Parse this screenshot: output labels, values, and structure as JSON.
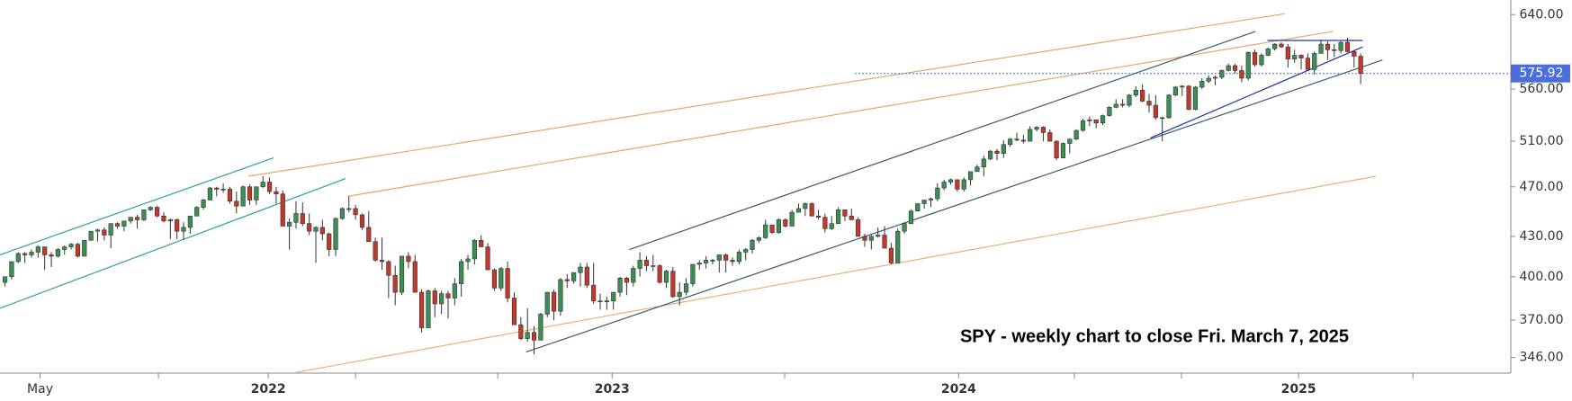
{
  "chart_data": {
    "type": "candlestick",
    "annotation": "SPY - weekly chart to close Fri. March 7, 2025",
    "log_y": true,
    "ylim": [
      336.5,
      657
    ],
    "yticks": [
      {
        "value": 346,
        "label": "346.00"
      },
      {
        "value": 370,
        "label": "370.00"
      },
      {
        "value": 400,
        "label": "400.00"
      },
      {
        "value": 430,
        "label": "430.00"
      },
      {
        "value": 470,
        "label": "470.00"
      },
      {
        "value": 510,
        "label": "510.00"
      },
      {
        "value": 560,
        "label": "560.00"
      },
      {
        "value": 640,
        "label": "640.00"
      }
    ],
    "xlim": [
      -0.76,
      227.7
    ],
    "xticks": [
      {
        "value": 5.3,
        "label": "May"
      },
      {
        "value": 39.8,
        "label": "2022"
      },
      {
        "value": 91.8,
        "label": "2023"
      },
      {
        "value": 144.2,
        "label": "2024"
      },
      {
        "value": 195.6,
        "label": "2025"
      }
    ],
    "x_minor_ticks": [
      23.2,
      53.0,
      74.5,
      117.9,
      161.7,
      177.9,
      212.9
    ],
    "up_color": "#3b8f52",
    "down_color": "#c0392b",
    "last_price": 575.92,
    "last_price_color": "#4a6fdc",
    "trendlines": [
      {
        "color": "#2aa198",
        "points": [
          [
            -0.76,
            416
          ],
          [
            40.6,
            495
          ]
        ]
      },
      {
        "color": "#2aa198",
        "points": [
          [
            -0.76,
            378
          ],
          [
            51.5,
            477
          ]
        ]
      },
      {
        "color": "#e3a86a",
        "points": [
          [
            36.8,
            479
          ],
          [
            193.5,
            641
          ]
        ]
      },
      {
        "color": "#e3a86a",
        "points": [
          [
            51.8,
            462
          ],
          [
            200.8,
            621
          ]
        ]
      },
      {
        "color": "#e8b07a",
        "points": [
          [
            44.1,
            337
          ],
          [
            207.3,
            479
          ]
        ]
      },
      {
        "color": "#3d5a6c",
        "points": [
          [
            94.4,
            420
          ],
          [
            189.1,
            621
          ]
        ]
      },
      {
        "color": "#3d5a6c",
        "points": [
          [
            78.8,
            349.5
          ],
          [
            208.3,
            590
          ]
        ]
      },
      {
        "color": "#2233aa",
        "points": [
          [
            173.2,
            513
          ],
          [
            205.3,
            604
          ]
        ]
      },
      {
        "color": "#2233aa",
        "points": [
          [
            190.9,
            611
          ],
          [
            205.3,
            611
          ]
        ]
      },
      {
        "color": "#4a6fdc",
        "dotted": true,
        "points": [
          [
            128.5,
            575.92
          ],
          [
            227.7,
            575.92
          ]
        ]
      }
    ],
    "ohlc": [
      [
        396,
        400,
        393,
        400
      ],
      [
        400,
        411,
        398,
        411
      ],
      [
        411,
        418,
        410,
        417
      ],
      [
        417,
        418,
        410,
        416
      ],
      [
        416,
        420,
        414,
        418
      ],
      [
        418,
        423,
        414,
        422
      ],
      [
        422,
        422,
        405,
        416
      ],
      [
        416,
        418,
        407,
        415
      ],
      [
        415,
        421,
        414,
        420
      ],
      [
        420,
        423,
        416,
        422
      ],
      [
        422,
        425,
        420,
        424
      ],
      [
        424,
        425,
        414,
        415
      ],
      [
        415,
        427,
        415,
        427
      ],
      [
        427,
        434,
        427,
        434
      ],
      [
        434,
        436,
        426,
        435
      ],
      [
        435,
        437,
        427,
        431
      ],
      [
        431,
        440,
        421,
        440
      ],
      [
        440,
        441,
        436,
        438
      ],
      [
        438,
        442,
        434,
        442
      ],
      [
        442,
        445,
        440,
        445
      ],
      [
        445,
        447,
        436,
        443
      ],
      [
        443,
        451,
        442,
        451
      ],
      [
        451,
        454,
        450,
        453
      ],
      [
        453,
        454,
        445,
        446
      ],
      [
        446,
        449,
        441,
        442
      ],
      [
        442,
        444,
        428,
        443
      ],
      [
        443,
        444,
        428,
        434
      ],
      [
        434,
        441,
        427,
        437
      ],
      [
        437,
        446,
        432,
        446
      ],
      [
        446,
        454,
        446,
        453
      ],
      [
        453,
        460,
        451,
        459
      ],
      [
        459,
        470,
        459,
        469
      ],
      [
        469,
        470,
        462,
        468
      ],
      [
        468,
        473,
        465,
        468
      ],
      [
        468,
        470,
        456,
        458
      ],
      [
        458,
        466,
        448,
        454
      ],
      [
        454,
        471,
        454,
        470
      ],
      [
        470,
        472,
        455,
        459
      ],
      [
        459,
        470,
        455,
        470
      ],
      [
        470,
        479,
        469,
        474
      ],
      [
        474,
        478,
        464,
        466
      ],
      [
        466,
        470,
        456,
        464
      ],
      [
        464,
        467,
        438,
        438
      ],
      [
        438,
        444,
        420,
        441
      ],
      [
        441,
        458,
        436,
        448
      ],
      [
        448,
        457,
        438,
        440
      ],
      [
        440,
        448,
        431,
        434
      ],
      [
        434,
        438,
        410,
        437
      ],
      [
        437,
        443,
        427,
        432
      ],
      [
        432,
        433,
        415,
        420
      ],
      [
        420,
        445,
        415,
        444
      ],
      [
        444,
        453,
        443,
        452
      ],
      [
        452,
        462,
        449,
        452
      ],
      [
        452,
        455,
        443,
        447
      ],
      [
        447,
        448,
        435,
        437
      ],
      [
        437,
        450,
        426,
        426
      ],
      [
        426,
        429,
        411,
        412
      ],
      [
        412,
        429,
        405,
        411
      ],
      [
        411,
        412,
        385,
        401
      ],
      [
        401,
        408,
        380,
        389
      ],
      [
        389,
        415,
        387,
        415
      ],
      [
        415,
        418,
        406,
        411
      ],
      [
        411,
        416,
        389,
        389
      ],
      [
        389,
        391,
        362,
        365
      ],
      [
        365,
        391,
        365,
        390
      ],
      [
        390,
        392,
        372,
        381
      ],
      [
        381,
        390,
        374,
        388
      ],
      [
        388,
        390,
        371,
        385
      ],
      [
        385,
        399,
        380,
        395
      ],
      [
        395,
        413,
        386,
        411
      ],
      [
        411,
        416,
        405,
        413
      ],
      [
        413,
        428,
        409,
        427
      ],
      [
        427,
        431,
        422,
        422
      ],
      [
        422,
        425,
        405,
        405
      ],
      [
        405,
        406,
        390,
        392
      ],
      [
        392,
        407,
        390,
        406
      ],
      [
        406,
        411,
        382,
        385
      ],
      [
        385,
        389,
        367,
        367
      ],
      [
        367,
        372,
        357,
        358
      ],
      [
        358,
        378,
        356,
        362
      ],
      [
        362,
        366,
        348,
        357
      ],
      [
        357,
        375,
        357,
        374
      ],
      [
        374,
        389,
        372,
        389
      ],
      [
        389,
        391,
        370,
        376
      ],
      [
        376,
        399,
        373,
        398
      ],
      [
        398,
        402,
        392,
        397
      ],
      [
        397,
        403,
        395,
        403
      ],
      [
        403,
        410,
        393,
        407
      ],
      [
        407,
        410,
        392,
        394
      ],
      [
        394,
        410,
        381,
        383
      ],
      [
        383,
        388,
        377,
        383
      ],
      [
        383,
        386,
        377,
        383
      ],
      [
        383,
        389,
        377,
        389
      ],
      [
        389,
        400,
        386,
        399
      ],
      [
        399,
        400,
        387,
        396
      ],
      [
        396,
        408,
        393,
        406
      ],
      [
        406,
        418,
        400,
        412
      ],
      [
        412,
        415,
        404,
        408
      ],
      [
        408,
        416,
        404,
        408
      ],
      [
        408,
        409,
        395,
        396
      ],
      [
        396,
        405,
        392,
        404
      ],
      [
        404,
        407,
        385,
        386
      ],
      [
        386,
        396,
        380,
        389
      ],
      [
        389,
        399,
        387,
        395
      ],
      [
        395,
        409,
        393,
        409
      ],
      [
        409,
        412,
        405,
        410
      ],
      [
        410,
        415,
        406,
        412
      ],
      [
        412,
        413,
        409,
        412
      ],
      [
        412,
        416,
        403,
        416
      ],
      [
        416,
        417,
        403,
        412
      ],
      [
        412,
        414,
        408,
        411
      ],
      [
        411,
        420,
        409,
        418
      ],
      [
        418,
        421,
        412,
        420
      ],
      [
        420,
        428,
        417,
        427
      ],
      [
        427,
        430,
        425,
        429
      ],
      [
        429,
        443,
        428,
        439
      ],
      [
        439,
        439,
        432,
        433
      ],
      [
        433,
        444,
        432,
        443
      ],
      [
        443,
        444,
        437,
        438
      ],
      [
        438,
        451,
        438,
        449
      ],
      [
        449,
        456,
        449,
        452
      ],
      [
        452,
        457,
        446,
        456
      ],
      [
        456,
        457,
        446,
        446
      ],
      [
        446,
        451,
        443,
        445
      ],
      [
        445,
        448,
        433,
        436
      ],
      [
        436,
        446,
        435,
        440
      ],
      [
        440,
        453,
        440,
        451
      ],
      [
        451,
        451,
        442,
        446
      ],
      [
        446,
        452,
        443,
        443
      ],
      [
        443,
        445,
        430,
        430
      ],
      [
        430,
        432,
        422,
        427
      ],
      [
        427,
        431,
        420,
        430
      ],
      [
        430,
        437,
        429,
        431
      ],
      [
        431,
        438,
        421,
        421
      ],
      [
        421,
        425,
        409,
        410
      ],
      [
        410,
        436,
        410,
        434
      ],
      [
        434,
        441,
        432,
        440
      ],
      [
        440,
        451,
        440,
        450
      ],
      [
        450,
        456,
        450,
        456
      ],
      [
        456,
        459,
        452,
        459
      ],
      [
        459,
        461,
        453,
        460
      ],
      [
        460,
        473,
        458,
        469
      ],
      [
        469,
        476,
        467,
        474
      ],
      [
        474,
        477,
        472,
        476
      ],
      [
        476,
        476,
        466,
        468
      ],
      [
        468,
        478,
        466,
        476
      ],
      [
        476,
        483,
        471,
        483
      ],
      [
        483,
        489,
        483,
        487
      ],
      [
        487,
        497,
        479,
        494
      ],
      [
        494,
        502,
        493,
        501
      ],
      [
        501,
        503,
        493,
        499
      ],
      [
        499,
        511,
        495,
        507
      ],
      [
        507,
        513,
        505,
        512
      ],
      [
        512,
        518,
        510,
        511
      ],
      [
        511,
        516,
        508,
        510
      ],
      [
        510,
        524,
        510,
        521
      ],
      [
        521,
        524,
        519,
        523
      ],
      [
        523,
        524,
        510,
        518
      ],
      [
        518,
        521,
        510,
        510
      ],
      [
        510,
        511,
        493,
        495
      ],
      [
        495,
        509,
        495,
        508
      ],
      [
        508,
        512,
        499,
        512
      ],
      [
        512,
        521,
        511,
        520
      ],
      [
        520,
        531,
        519,
        529
      ],
      [
        529,
        533,
        524,
        530
      ],
      [
        530,
        530,
        522,
        527
      ],
      [
        527,
        535,
        525,
        534
      ],
      [
        534,
        543,
        533,
        542
      ],
      [
        542,
        550,
        541,
        545
      ],
      [
        545,
        550,
        542,
        544
      ],
      [
        544,
        555,
        542,
        554
      ],
      [
        554,
        563,
        552,
        559
      ],
      [
        559,
        565,
        547,
        548
      ],
      [
        548,
        555,
        537,
        544
      ],
      [
        544,
        554,
        530,
        532
      ],
      [
        532,
        533,
        510,
        532
      ],
      [
        532,
        555,
        531,
        554
      ],
      [
        554,
        563,
        553,
        562
      ],
      [
        562,
        564,
        553,
        563
      ],
      [
        563,
        564,
        539,
        540
      ],
      [
        540,
        563,
        539,
        562
      ],
      [
        562,
        571,
        560,
        568
      ],
      [
        568,
        574,
        566,
        571
      ],
      [
        571,
        574,
        564,
        572
      ],
      [
        572,
        580,
        570,
        579
      ],
      [
        579,
        586,
        578,
        584
      ],
      [
        584,
        586,
        576,
        579
      ],
      [
        579,
        584,
        567,
        571
      ],
      [
        571,
        599,
        569,
        598
      ],
      [
        598,
        601,
        583,
        585
      ],
      [
        585,
        597,
        583,
        595
      ],
      [
        595,
        603,
        594,
        602
      ],
      [
        602,
        608,
        600,
        607
      ],
      [
        607,
        609,
        603,
        604
      ],
      [
        604,
        607,
        582,
        591
      ],
      [
        591,
        601,
        587,
        595
      ],
      [
        595,
        596,
        580,
        592
      ],
      [
        592,
        597,
        580,
        580
      ],
      [
        580,
        599,
        575,
        597
      ],
      [
        597,
        611,
        597,
        607
      ],
      [
        607,
        610,
        590,
        601
      ],
      [
        601,
        607,
        593,
        600
      ],
      [
        600,
        610,
        597,
        609
      ],
      [
        609,
        614,
        598,
        599
      ],
      [
        599,
        600,
        582,
        594
      ],
      [
        594,
        597,
        565,
        575.92
      ]
    ]
  }
}
